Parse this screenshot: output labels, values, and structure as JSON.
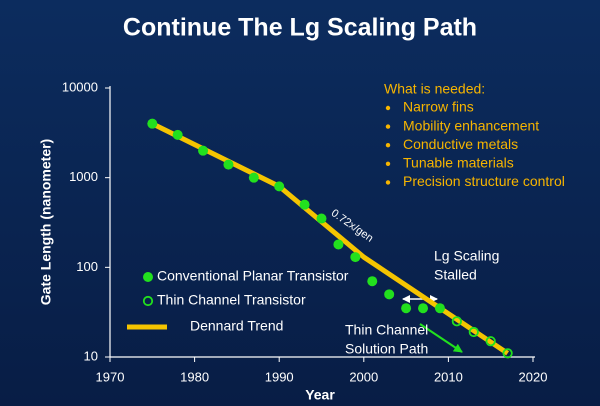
{
  "chart_data": {
    "type": "scatter",
    "title": "Continue The Lg Scaling Path",
    "x_label": "Year",
    "y_label": "Gate Length (nanometer)",
    "xlim": [
      1970,
      2020
    ],
    "xticks": [
      1970,
      1980,
      1990,
      2000,
      2010,
      2020
    ],
    "ylim": [
      10,
      10000
    ],
    "yticks": [
      10,
      100,
      1000,
      10000
    ],
    "y_scale": "log",
    "series": [
      {
        "name": "Conventional Planar Transistor",
        "color": "#22e01e",
        "marker": "filled",
        "x": [
          1975,
          1978,
          1981,
          1984,
          1987,
          1990,
          1993,
          1995,
          1997,
          1999,
          2001,
          2003,
          2005,
          2007,
          2009
        ],
        "values": [
          4000,
          3000,
          2000,
          1400,
          1000,
          800,
          500,
          350,
          180,
          130,
          70,
          50,
          35,
          35,
          35
        ]
      },
      {
        "name": "Thin Channel Transistor",
        "color": "#22e01e",
        "marker": "hollow",
        "x": [
          2011,
          2013,
          2015,
          2017
        ],
        "values": [
          25,
          19,
          15,
          11
        ]
      },
      {
        "name": "Dennard Trend",
        "color": "#f5c400",
        "marker": "line",
        "x": [
          1975,
          1990,
          2000,
          2017
        ],
        "values": [
          4000,
          800,
          130,
          11
        ]
      }
    ],
    "slope_label": "0.72x/gen",
    "stalled_label": [
      "Lg Scaling",
      "Stalled"
    ],
    "solution_label": [
      "Thin Channel",
      "Solution Path"
    ],
    "needs_title": "What is needed:",
    "needs": [
      "Narrow fins",
      "Mobility enhancement",
      "Conductive metals",
      "Tunable materials",
      "Precision structure control"
    ]
  }
}
